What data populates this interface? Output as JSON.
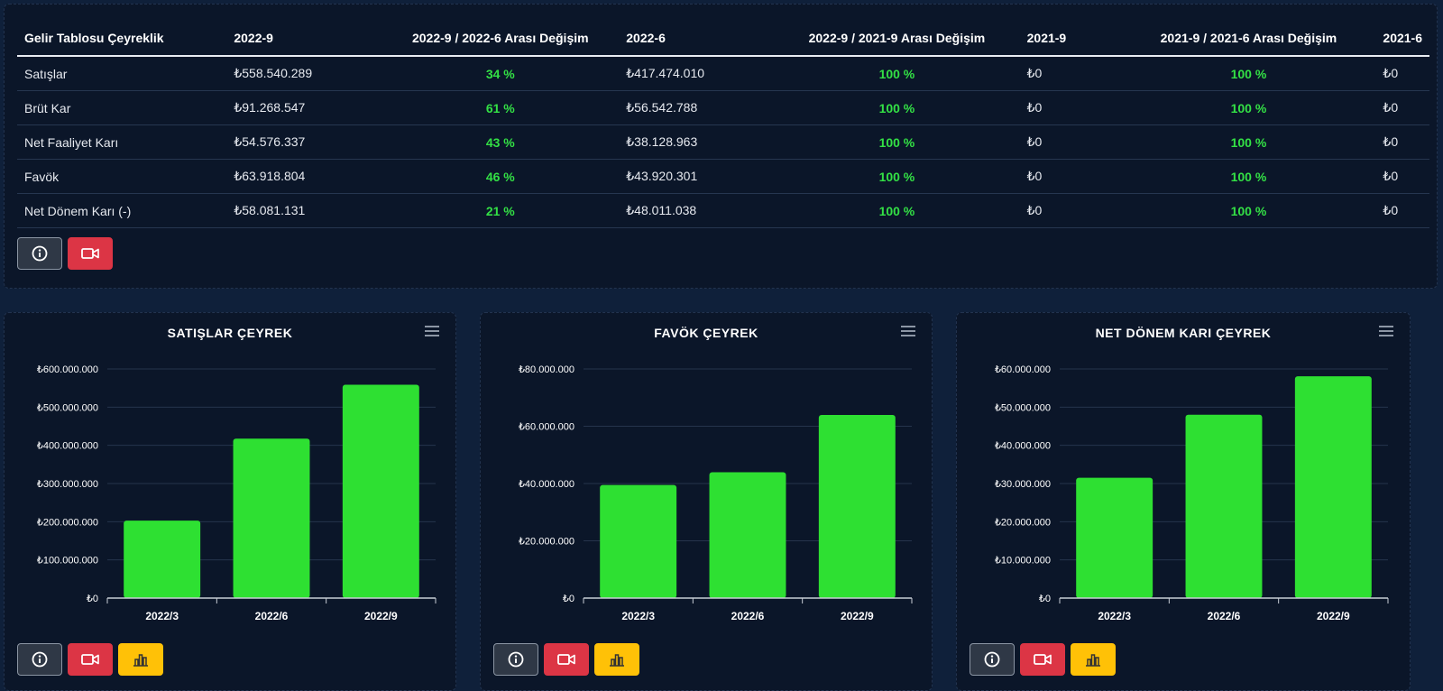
{
  "table": {
    "headers": [
      "Gelir Tablosu Çeyreklik",
      "2022-9",
      "2022-9 / 2022-6 Arası Değişim",
      "2022-6",
      "2022-9 / 2021-9 Arası Değişim",
      "2021-9",
      "2021-9 / 2021-6 Arası Değişim",
      "2021-6"
    ],
    "rows": [
      [
        "Satışlar",
        "₺558.540.289",
        "34 %",
        "₺417.474.010",
        "100 %",
        "₺0",
        "100 %",
        "₺0"
      ],
      [
        "Brüt Kar",
        "₺91.268.547",
        "61 %",
        "₺56.542.788",
        "100 %",
        "₺0",
        "100 %",
        "₺0"
      ],
      [
        "Net Faaliyet Karı",
        "₺54.576.337",
        "43 %",
        "₺38.128.963",
        "100 %",
        "₺0",
        "100 %",
        "₺0"
      ],
      [
        "Favök",
        "₺63.918.804",
        "46 %",
        "₺43.920.301",
        "100 %",
        "₺0",
        "100 %",
        "₺0"
      ],
      [
        "Net Dönem Karı (-)",
        "₺58.081.131",
        "21 %",
        "₺48.011.038",
        "100 %",
        "₺0",
        "100 %",
        "₺0"
      ]
    ]
  },
  "colors": {
    "bar": "#2ee032",
    "positive_change": "#33e045",
    "panel_bg": "#0b1629",
    "page_bg": "#0f203a"
  },
  "icons": {
    "info": "info-circle-icon",
    "video": "video-camera-icon",
    "chart": "bar-chart-icon",
    "menu": "hamburger-menu-icon"
  },
  "chart_data": [
    {
      "type": "bar",
      "title": "SATIŞLAR ÇEYREK",
      "categories": [
        "2022/3",
        "2022/6",
        "2022/9"
      ],
      "values": [
        203000000,
        417474010,
        558540289
      ],
      "yticks": [
        0,
        100000000,
        200000000,
        300000000,
        400000000,
        500000000,
        600000000
      ],
      "ytick_labels": [
        "₺0",
        "₺100.000.000",
        "₺200.000.000",
        "₺300.000.000",
        "₺400.000.000",
        "₺500.000.000",
        "₺600.000.000"
      ],
      "ylim": [
        0,
        600000000
      ],
      "grid": true
    },
    {
      "type": "bar",
      "title": "FAVÖK ÇEYREK",
      "categories": [
        "2022/3",
        "2022/6",
        "2022/9"
      ],
      "values": [
        39500000,
        43920301,
        63918804
      ],
      "yticks": [
        0,
        20000000,
        40000000,
        60000000,
        80000000
      ],
      "ytick_labels": [
        "₺0",
        "₺20.000.000",
        "₺40.000.000",
        "₺60.000.000",
        "₺80.000.000"
      ],
      "ylim": [
        0,
        80000000
      ],
      "grid": true
    },
    {
      "type": "bar",
      "title": "NET DÖNEM KARI ÇEYREK",
      "categories": [
        "2022/3",
        "2022/6",
        "2022/9"
      ],
      "values": [
        31500000,
        48011038,
        58081131
      ],
      "yticks": [
        0,
        10000000,
        20000000,
        30000000,
        40000000,
        50000000,
        60000000
      ],
      "ytick_labels": [
        "₺0",
        "₺10.000.000",
        "₺20.000.000",
        "₺30.000.000",
        "₺40.000.000",
        "₺50.000.000",
        "₺60.000.000"
      ],
      "ylim": [
        0,
        60000000
      ],
      "grid": true
    }
  ]
}
